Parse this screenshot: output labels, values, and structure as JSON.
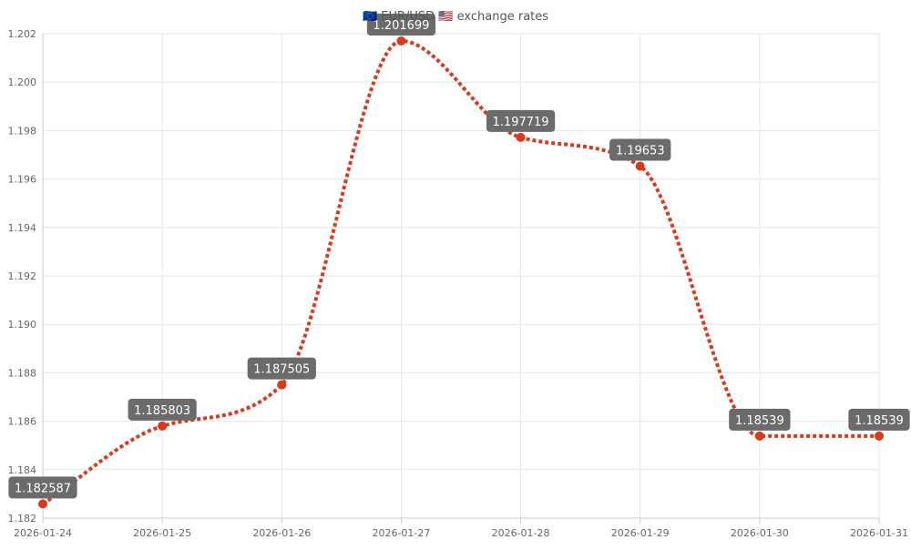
{
  "chart_data": {
    "type": "line",
    "title": "🇪🇺 EUR/USD 🇺🇸 exchange rates",
    "categories": [
      "2026-01-24",
      "2026-01-25",
      "2026-01-26",
      "2026-01-27",
      "2026-01-28",
      "2026-01-29",
      "2026-01-30",
      "2026-01-31"
    ],
    "series": [
      {
        "values": [
          1.182587,
          1.185803,
          1.187505,
          1.201699,
          1.197719,
          1.19653,
          1.18539,
          1.18539
        ],
        "labels": [
          "1.182587",
          "1.185803",
          "1.187505",
          "1.201699",
          "1.197719",
          "1.19653",
          "1.18539",
          "1.18539"
        ],
        "color": "#d9391c",
        "line_style": "dotted",
        "smooth": true
      }
    ],
    "y_ticks": [
      "1.182",
      "1.184",
      "1.186",
      "1.188",
      "1.190",
      "1.192",
      "1.194",
      "1.196",
      "1.198",
      "1.200",
      "1.202"
    ],
    "ylim": [
      1.182,
      1.202
    ],
    "xlabel": "",
    "ylabel": "",
    "grid": true,
    "legend": "none",
    "data_label_bg": "#6b6b6b",
    "grid_color": "#e6e6e6",
    "axis_color": "#cccccc"
  }
}
